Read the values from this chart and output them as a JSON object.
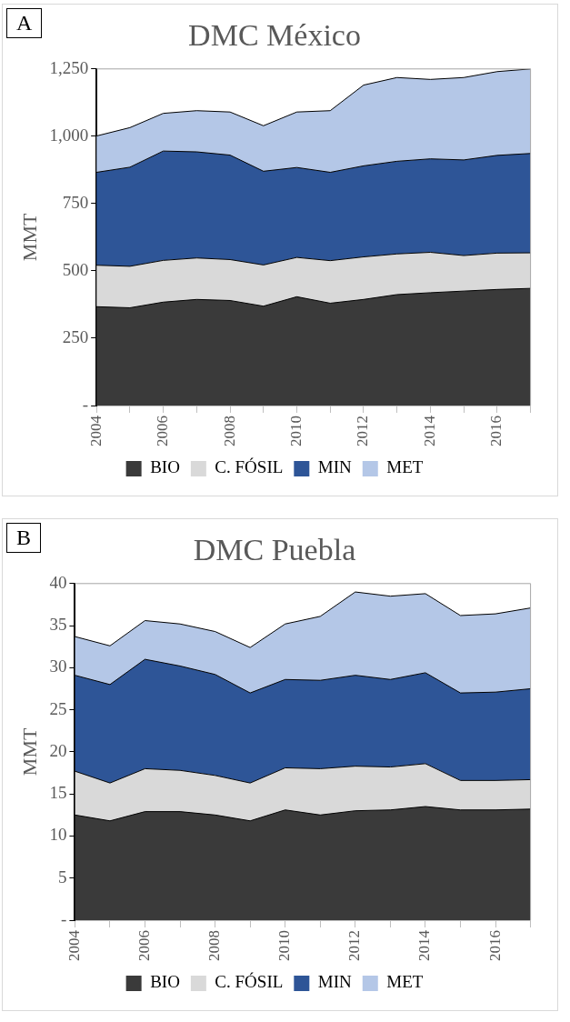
{
  "chart_data": [
    {
      "type": "area",
      "title": "DMC México",
      "ylabel": "MMT",
      "annotations": [
        "A"
      ],
      "stacked": true,
      "grid": false,
      "legend": "bottom",
      "categories": [
        "2004",
        null,
        "2006",
        null,
        "2008",
        null,
        "2010",
        null,
        "2012",
        null,
        "2014",
        null,
        "2016",
        null
      ],
      "ylim": [
        0,
        1250
      ],
      "yticks": [
        {
          "value": 0,
          "label": "-"
        },
        250,
        500,
        750,
        {
          "value": 1000,
          "label": "1,000"
        },
        {
          "value": 1250,
          "label": "1,250"
        }
      ],
      "series": [
        {
          "name": "BIO",
          "color": "#3a3a3a",
          "values": [
            367,
            363,
            384,
            394,
            390,
            369,
            404,
            380,
            394,
            412,
            419,
            425,
            431,
            435
          ]
        },
        {
          "name": "C. FÓSIL",
          "color": "#d9d9d9",
          "values": [
            154,
            154,
            155,
            154,
            152,
            153,
            146,
            158,
            158,
            151,
            150,
            132,
            135,
            132
          ]
        },
        {
          "name": "MIN",
          "color": "#2e5597",
          "values": [
            345,
            368,
            406,
            394,
            388,
            348,
            334,
            328,
            338,
            344,
            347,
            355,
            363,
            369
          ]
        },
        {
          "name": "MET",
          "color": "#b4c7e7",
          "values": [
            135,
            147,
            140,
            153,
            160,
            169,
            206,
            229,
            300,
            311,
            295,
            306,
            311,
            314
          ]
        }
      ]
    },
    {
      "type": "area",
      "title": "DMC Puebla",
      "ylabel": "MMT",
      "annotations": [
        "B"
      ],
      "stacked": true,
      "grid": false,
      "legend": "bottom",
      "categories": [
        "2004",
        null,
        "2006",
        null,
        "2008",
        null,
        "2010",
        null,
        "2012",
        null,
        "2014",
        null,
        "2016",
        null
      ],
      "ylim": [
        0,
        40
      ],
      "yticks": [
        {
          "value": 0,
          "label": "-"
        },
        5,
        10,
        15,
        20,
        25,
        30,
        35,
        40
      ],
      "series": [
        {
          "name": "BIO",
          "color": "#3a3a3a",
          "values": [
            12.5,
            11.8,
            12.9,
            12.9,
            12.5,
            11.8,
            13.1,
            12.5,
            13.0,
            13.1,
            13.5,
            13.1,
            13.1,
            13.2
          ]
        },
        {
          "name": "C. FÓSIL",
          "color": "#d9d9d9",
          "values": [
            5.2,
            4.5,
            5.1,
            4.9,
            4.7,
            4.5,
            5.0,
            5.5,
            5.3,
            5.1,
            5.1,
            3.5,
            3.5,
            3.5
          ]
        },
        {
          "name": "MIN",
          "color": "#2e5597",
          "values": [
            11.4,
            11.7,
            13.0,
            12.4,
            12.0,
            10.7,
            10.5,
            10.5,
            10.8,
            10.4,
            10.8,
            10.4,
            10.5,
            10.8
          ]
        },
        {
          "name": "MET",
          "color": "#b4c7e7",
          "values": [
            4.6,
            4.6,
            4.6,
            5.0,
            5.1,
            5.4,
            6.6,
            7.6,
            9.9,
            9.9,
            9.4,
            9.2,
            9.3,
            9.6
          ]
        }
      ]
    }
  ]
}
